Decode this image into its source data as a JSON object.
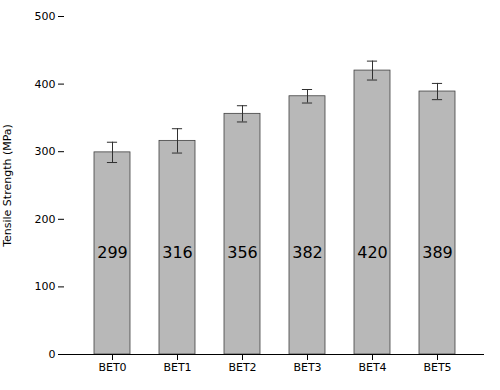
{
  "chart_data": {
    "type": "bar",
    "ylabel": "Tensile Strength (MPa)",
    "categories": [
      "BET0",
      "BET1",
      "BET2",
      "BET3",
      "BET4",
      "BET5"
    ],
    "values": [
      299,
      316,
      356,
      382,
      420,
      389
    ],
    "errors": [
      15,
      18,
      12,
      10,
      14,
      12
    ],
    "color": "#b8b8b8",
    "ylim": [
      0,
      500
    ],
    "yticks": [
      0,
      100,
      200,
      300,
      400,
      500
    ],
    "grid": false,
    "data_labels": true
  }
}
